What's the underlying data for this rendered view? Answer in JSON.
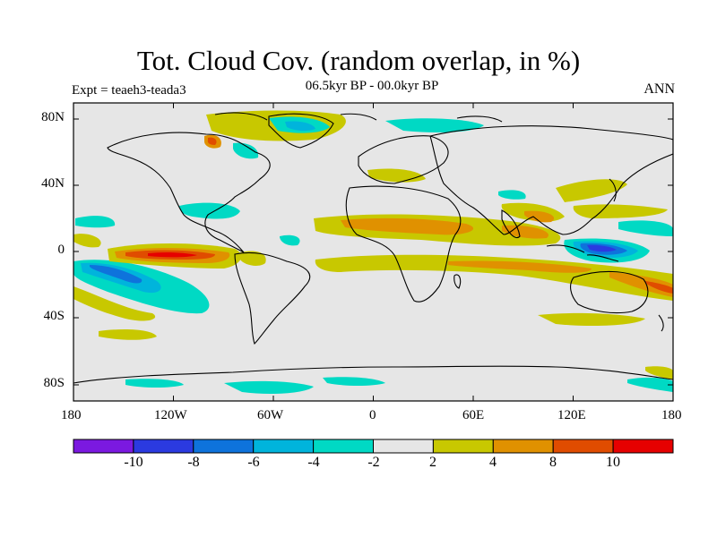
{
  "title": "Tot. Cloud Cov. (random overlap, in %)",
  "subtitle": "06.5kyr BP - 00.0kyr BP",
  "left_label": "Expt = teaeh3-teada3",
  "right_label": "ANN",
  "lon_ticks": [
    "180",
    "120W",
    "60W",
    "0",
    "60E",
    "120E",
    "180"
  ],
  "lat_ticks": [
    "80N",
    "40N",
    "0",
    "40S",
    "80S"
  ],
  "colorbar": {
    "labels": [
      "-10",
      "-8",
      "-6",
      "-4",
      "-2",
      "2",
      "4",
      "8",
      "10"
    ],
    "colors": [
      "#7b19e0",
      "#2b3ae0",
      "#0e73dc",
      "#00b4dc",
      "#00d9c4",
      "#e6e6e6",
      "#c8c800",
      "#e09100",
      "#e04c00",
      "#e60000"
    ]
  }
}
